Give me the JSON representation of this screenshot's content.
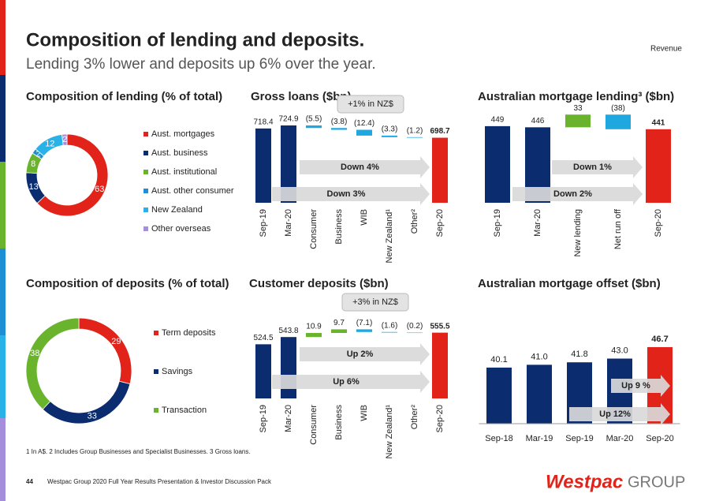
{
  "header": {
    "title": "Composition of lending and deposits.",
    "subtitle": "Lending 3% lower and deposits up 6% over the year.",
    "tag": "Revenue"
  },
  "chart_data": [
    {
      "type": "donut",
      "title": "Composition of lending (% of total)",
      "categories": [
        "Aust. mortgages",
        "Aust. business",
        "Aust. institutional",
        "Aust. other consumer",
        "New Zealand",
        "Other overseas"
      ],
      "values": [
        63,
        13,
        8,
        2,
        12,
        2
      ],
      "colors": [
        "#e2231a",
        "#0b2d6f",
        "#6ab42d",
        "#1e8fd5",
        "#29b2e8",
        "#a58fdc"
      ]
    },
    {
      "type": "waterfall",
      "title": "Gross loans ($bn)",
      "categories": [
        "Sep-19",
        "Mar-20",
        "Consumer",
        "Business",
        "WIB",
        "New Zealand¹",
        "Other²",
        "Sep-20"
      ],
      "values": [
        718.4,
        724.9,
        -5.5,
        -3.8,
        -12.4,
        -3.3,
        -1.2,
        698.7
      ],
      "value_labels": [
        "718.4",
        "724.9",
        "(5.5)",
        "(3.8)",
        "(12.4)",
        "(3.3)",
        "(1.2)",
        "698.7"
      ],
      "total": [
        true,
        true,
        false,
        false,
        false,
        false,
        false,
        true
      ],
      "colors": [
        "#0b2d6f",
        "#0b2d6f",
        "#1fa8e0",
        "#1fa8e0",
        "#1fa8e0",
        "#1fa8e0",
        "#1fa8e0",
        "#e2231a"
      ],
      "ylim": [
        560,
        740
      ],
      "annotations": [
        "+1% in NZ$",
        "Down 4%",
        "Down 3%"
      ]
    },
    {
      "type": "waterfall",
      "title": "Australian mortgage lending³ ($bn)",
      "categories": [
        "Sep-19",
        "Mar-20",
        "New lending",
        "Net run off",
        "Sep-20"
      ],
      "values": [
        449,
        446,
        33,
        -38,
        441
      ],
      "value_labels": [
        "449",
        "446",
        "33",
        "(38)",
        "441"
      ],
      "total": [
        true,
        true,
        false,
        false,
        true
      ],
      "colors": [
        "#0b2d6f",
        "#0b2d6f",
        "#6ab42d",
        "#1fa8e0",
        "#e2231a"
      ],
      "ylim": [
        250,
        500
      ],
      "annotations": [
        "Down 1%",
        "Down 2%"
      ]
    },
    {
      "type": "donut",
      "title": "Composition of deposits (% of total)",
      "categories": [
        "Term deposits",
        "Savings",
        "Transaction"
      ],
      "values": [
        29,
        33,
        38
      ],
      "colors": [
        "#e2231a",
        "#0b2d6f",
        "#6ab42d"
      ]
    },
    {
      "type": "waterfall",
      "title": "Customer deposits ($bn)",
      "categories": [
        "Sep-19",
        "Mar-20",
        "Consumer",
        "Business",
        "WIB",
        "New Zealand¹",
        "Other²",
        "Sep-20"
      ],
      "values": [
        524.5,
        543.8,
        10.9,
        9.7,
        -7.1,
        -1.6,
        -0.2,
        555.5
      ],
      "value_labels": [
        "524.5",
        "543.8",
        "10.9",
        "9.7",
        "(7.1)",
        "(1.6)",
        "(0.2)",
        "555.5"
      ],
      "total": [
        true,
        true,
        false,
        false,
        false,
        false,
        false,
        true
      ],
      "colors": [
        "#0b2d6f",
        "#0b2d6f",
        "#6ab42d",
        "#6ab42d",
        "#1fa8e0",
        "#1fa8e0",
        "#1fa8e0",
        "#e2231a"
      ],
      "ylim": [
        380,
        580
      ],
      "annotations": [
        "+3% in NZ$",
        "Up 2%",
        "Up 6%"
      ]
    },
    {
      "type": "bar",
      "title": "Australian mortgage offset ($bn)",
      "categories": [
        "Sep-18",
        "Mar-19",
        "Sep-19",
        "Mar-20",
        "Sep-20"
      ],
      "values": [
        40.1,
        41.0,
        41.8,
        43.0,
        46.7
      ],
      "value_labels": [
        "40.1",
        "41.0",
        "41.8",
        "43.0",
        "46.7"
      ],
      "colors": [
        "#0b2d6f",
        "#0b2d6f",
        "#0b2d6f",
        "#0b2d6f",
        "#e2231a"
      ],
      "ylim": [
        22,
        50
      ],
      "annotations": [
        "Up 9 %",
        "Up 12%"
      ]
    }
  ],
  "footnote": "1 In A$. 2 Includes Group Businesses and Specialist Businesses. 3 Gross loans.",
  "footer": {
    "page": "44",
    "text": "Westpac Group 2020 Full Year Results Presentation & Investor Discussion Pack",
    "logo": "Westpac",
    "logo_group": "GROUP"
  }
}
